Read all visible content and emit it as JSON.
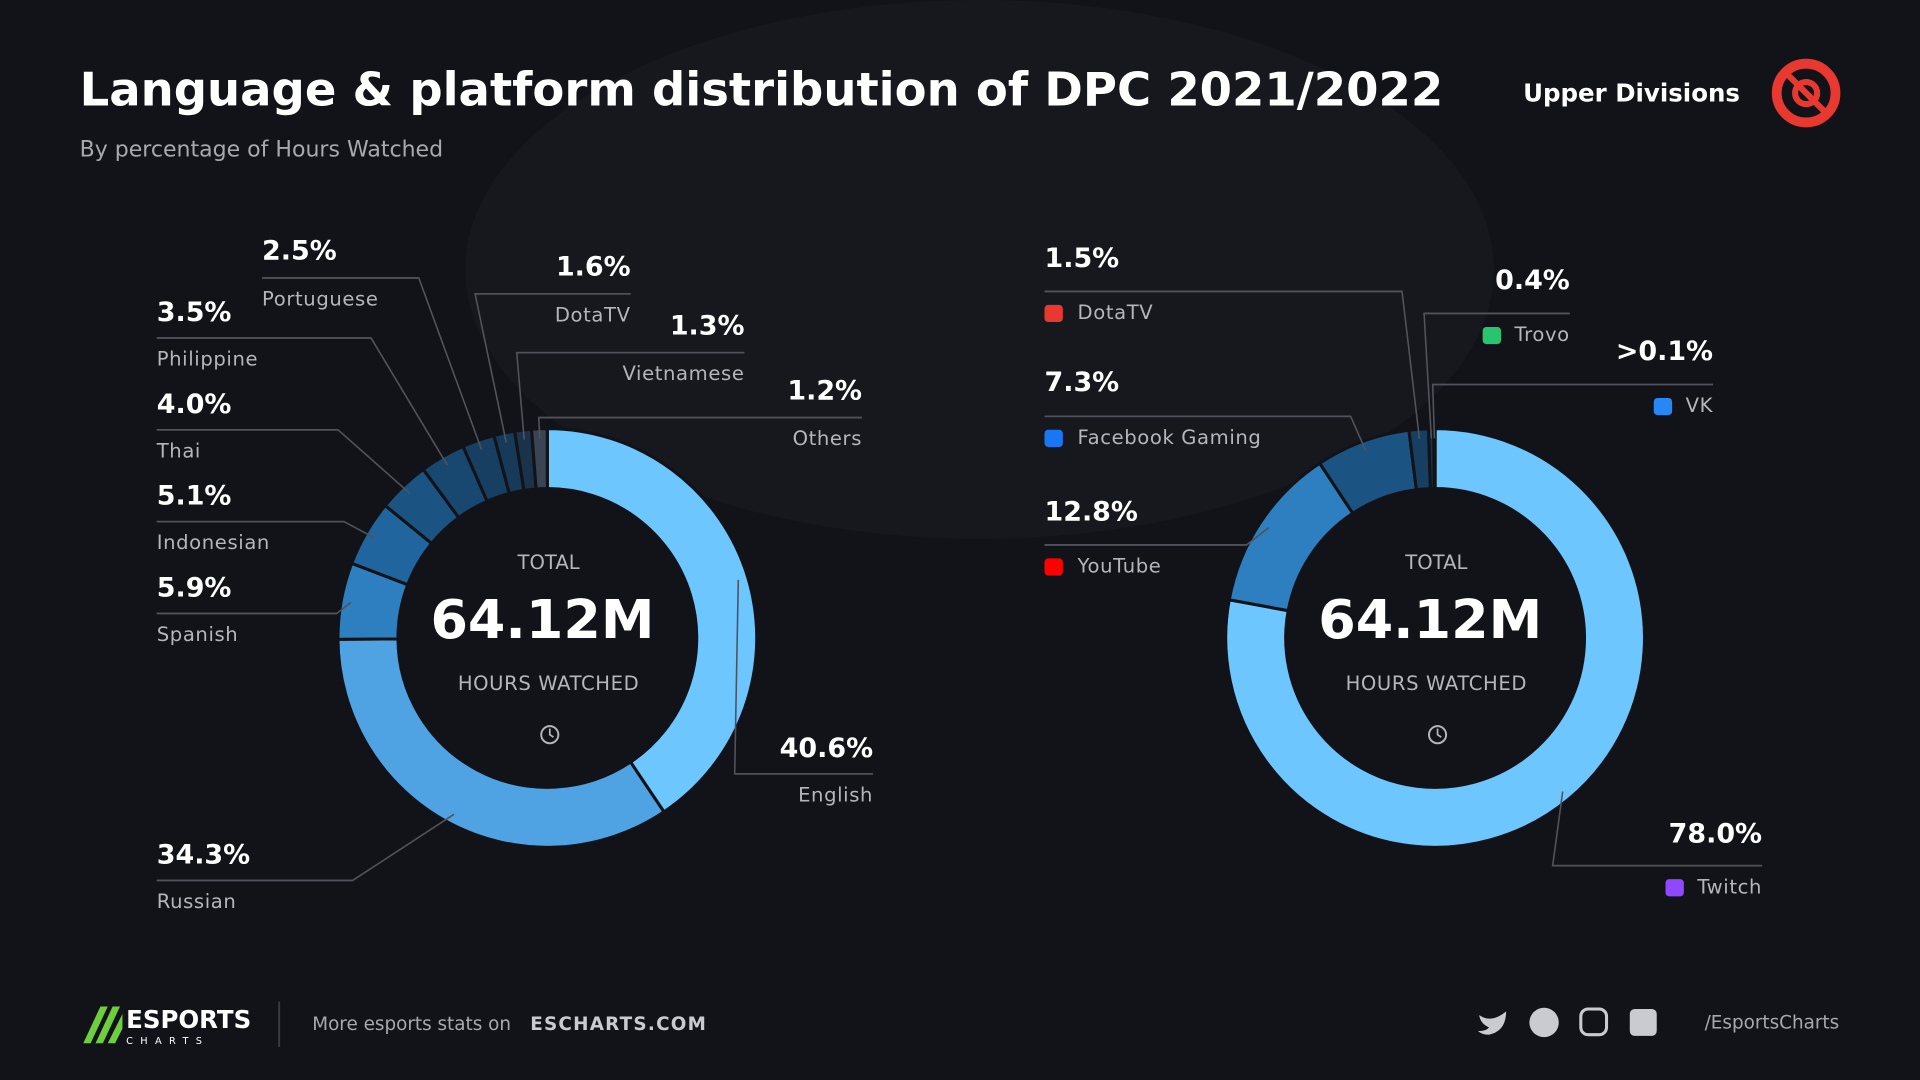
{
  "header": {
    "title": "Language & platform distribution of DPC 2021/2022",
    "subtitle": "By percentage of Hours Watched",
    "division": "Upper Divisions"
  },
  "chart_data": [
    {
      "type": "pie",
      "donut": true,
      "center_top": "TOTAL",
      "center_value": "64.12M",
      "center_bottom": "HOURS WATCHED",
      "categories": [
        "English",
        "Russian",
        "Spanish",
        "Indonesian",
        "Thai",
        "Philippine",
        "Portuguese",
        "DotaTV",
        "Vietnamese",
        "Others"
      ],
      "values": [
        40.6,
        34.3,
        5.9,
        5.1,
        4.0,
        3.5,
        2.5,
        1.6,
        1.3,
        1.2
      ],
      "value_labels": [
        "40.6%",
        "34.3%",
        "5.9%",
        "5.1%",
        "4.0%",
        "3.5%",
        "2.5%",
        "1.6%",
        "1.3%",
        "1.2%"
      ],
      "colors": [
        "#6ec6ff",
        "#4fa3e3",
        "#2e7fbf",
        "#20659d",
        "#1b5483",
        "#184870",
        "#163f62",
        "#163a58",
        "#1a334a",
        "#3a4452"
      ]
    },
    {
      "type": "pie",
      "donut": true,
      "center_top": "TOTAL",
      "center_value": "64.12M",
      "center_bottom": "HOURS WATCHED",
      "categories": [
        "Twitch",
        "YouTube",
        "Facebook Gaming",
        "DotaTV",
        "Trovo",
        "VK"
      ],
      "values": [
        78.0,
        12.8,
        7.3,
        1.5,
        0.4,
        0.1
      ],
      "value_labels": [
        "78.0%",
        "12.8%",
        "7.3%",
        "1.5%",
        "0.4%",
        ">0.1%"
      ],
      "colors": [
        "#6ec6ff",
        "#2e7fbf",
        "#1b5483",
        "#163f62",
        "#1a334a",
        "#2a3644"
      ]
    }
  ],
  "footer": {
    "brand": "ESPORTS",
    "brand_sub": "CHARTS",
    "more": "More esports stats on",
    "site": "ESCHARTS.COM",
    "handle": "/EsportsCharts"
  }
}
